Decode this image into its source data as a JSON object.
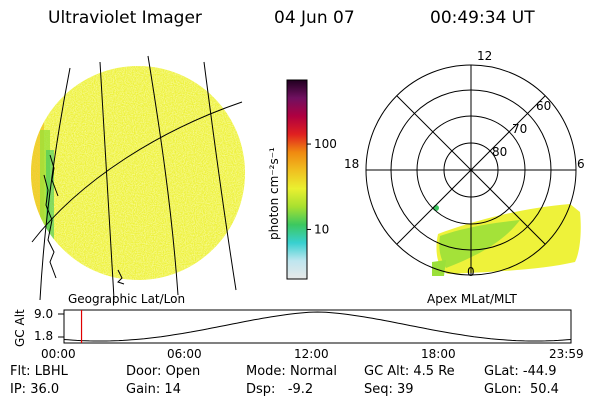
{
  "header": {
    "title": "Ultraviolet Imager",
    "date": "04 Jun 07",
    "time": "00:49:34 UT"
  },
  "colorbar": {
    "label": "photon cm⁻²s⁻¹",
    "scale": "log",
    "tick_100": "100",
    "tick_10": "10",
    "value_100": 100,
    "value_10": 10
  },
  "left_panel": {
    "caption": "Geographic Lat/Lon"
  },
  "polar_panel": {
    "caption": "Apex MLat/MLT",
    "mlt_labels": {
      "top": "12",
      "left": "18",
      "right": "6",
      "bottom": "0"
    },
    "lat_labels": [
      "60",
      "70",
      "80"
    ]
  },
  "altitude_panel": {
    "ylabel": "GC Alt",
    "y_ticks": [
      "9.0",
      "1.8"
    ],
    "x_ticks": [
      "00:00",
      "06:00",
      "12:00",
      "18:00",
      "23:59"
    ],
    "current_time_hours": 0.83
  },
  "status": {
    "filter_label": "Flt:",
    "filter_value": "LBHL",
    "ip_label": "IP:",
    "ip_value": "36.0",
    "door_label": "Door:",
    "door_value": "Open",
    "gain_label": "Gain:",
    "gain_value": "14",
    "mode_label": "Mode:",
    "mode_value": "Normal",
    "dsp_label": "Dsp:",
    "dsp_value": "-9.2",
    "gcalt_label": "GC Alt:",
    "gcalt_value": "4.5 Re",
    "seq_label": "Seq:",
    "seq_value": "39",
    "glat_label": "GLat:",
    "glat_value": "-44.9",
    "glon_label": "GLon:",
    "glon_value": "50.4"
  },
  "colors": {
    "disk_fill": "#eef23a",
    "disk_speckle": "#f7f5a4",
    "aurora_green": "#9be03a",
    "colorbar_stops": [
      "#e8e8e8",
      "#bfe6ef",
      "#38d0d0",
      "#3cc860",
      "#a8e030",
      "#eaf030",
      "#f0c020",
      "#f08a10",
      "#e02020",
      "#b00040",
      "#701060",
      "#200020"
    ],
    "time_marker": "#e00000"
  }
}
